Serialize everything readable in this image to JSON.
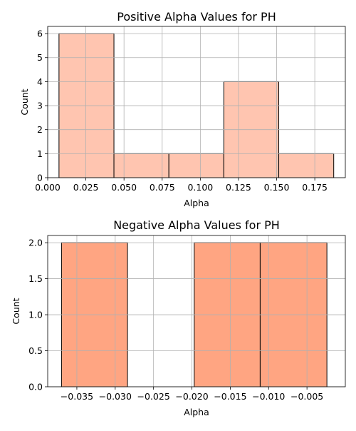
{
  "chart_data": [
    {
      "type": "bar",
      "title": "Positive Alpha Values for PH",
      "xlabel": "Alpha",
      "ylabel": "Count",
      "color": "#ffc5b0",
      "edge_color": "#000000",
      "grid": true,
      "xlim": [
        -0.0,
        0.195
      ],
      "ylim": [
        0,
        6.3
      ],
      "xticks": [
        "0.000",
        "0.025",
        "0.050",
        "0.075",
        "0.100",
        "0.125",
        "0.150",
        "0.175"
      ],
      "xtick_values": [
        0.0,
        0.025,
        0.05,
        0.075,
        0.1,
        0.125,
        0.15,
        0.175
      ],
      "yticks": [
        "0",
        "1",
        "2",
        "3",
        "4",
        "5",
        "6"
      ],
      "ytick_values": [
        0,
        1,
        2,
        3,
        4,
        5,
        6
      ],
      "bins": [
        {
          "x0": 0.0074,
          "x1": 0.0434,
          "count": 6
        },
        {
          "x0": 0.0434,
          "x1": 0.0794,
          "count": 1
        },
        {
          "x0": 0.0794,
          "x1": 0.1154,
          "count": 1
        },
        {
          "x0": 0.1154,
          "x1": 0.1514,
          "count": 4
        },
        {
          "x0": 0.1514,
          "x1": 0.1874,
          "count": 1
        }
      ]
    },
    {
      "type": "bar",
      "title": "Negative Alpha Values for PH",
      "xlabel": "Alpha",
      "ylabel": "Count",
      "color": "#ffa582",
      "edge_color": "#000000",
      "grid": true,
      "xlim": [
        -0.0388,
        0.0
      ],
      "ylim": [
        0,
        2.1
      ],
      "xticks": [
        "−0.035",
        "−0.030",
        "−0.025",
        "−0.020",
        "−0.015",
        "−0.010",
        "−0.005"
      ],
      "xtick_values": [
        -0.035,
        -0.03,
        -0.025,
        -0.02,
        -0.015,
        -0.01,
        -0.005
      ],
      "yticks": [
        "0.0",
        "0.5",
        "1.0",
        "1.5",
        "2.0"
      ],
      "ytick_values": [
        0.0,
        0.5,
        1.0,
        1.5,
        2.0
      ],
      "bins": [
        {
          "x0": -0.037,
          "x1": -0.0284,
          "count": 2
        },
        {
          "x0": -0.0284,
          "x1": -0.0197,
          "count": 0
        },
        {
          "x0": -0.0197,
          "x1": -0.0111,
          "count": 2
        },
        {
          "x0": -0.0111,
          "x1": -0.0024,
          "count": 2
        }
      ]
    }
  ]
}
